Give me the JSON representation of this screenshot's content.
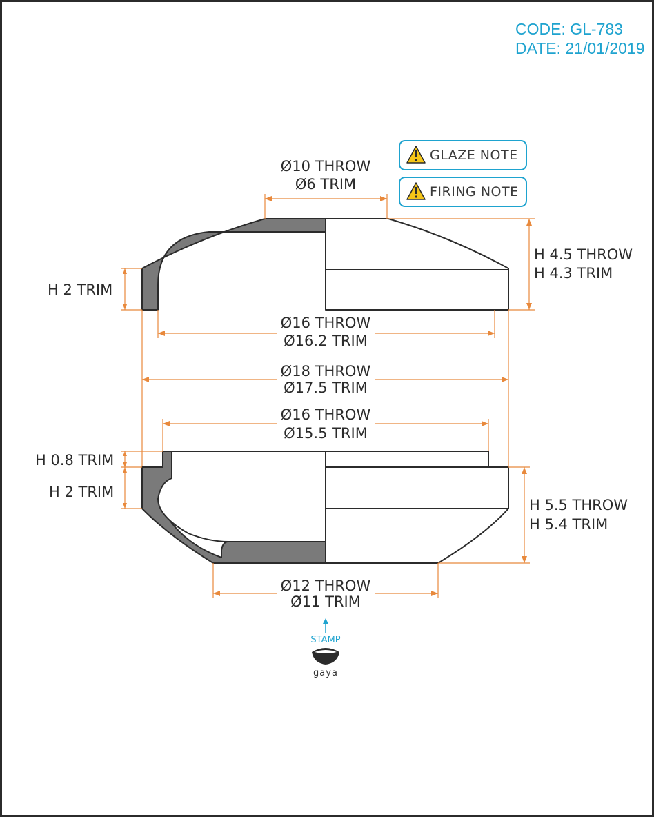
{
  "header": {
    "code": "CODE: GL-783",
    "date": "DATE: 21/01/2019"
  },
  "notes": [
    {
      "label": "GLAZE NOTE",
      "icon": "warning-icon"
    },
    {
      "label": "FIRING NOTE",
      "icon": "warning-icon"
    }
  ],
  "top_piece": {
    "top_diameter": {
      "throw": "Ø10 THROW",
      "trim": "Ø6 TRIM"
    },
    "height": {
      "throw": "H 4.5 THROW",
      "trim": "H 4.3 TRIM"
    },
    "wall_height": {
      "trim": "H 2 TRIM"
    },
    "inner_diameter": {
      "throw": "Ø16 THROW",
      "trim": "Ø16.2 TRIM"
    }
  },
  "shared": {
    "outer_diameter": {
      "throw": "Ø18 THROW",
      "trim": "Ø17.5 TRIM"
    }
  },
  "bottom_piece": {
    "flange_diameter": {
      "throw": "Ø16 THROW",
      "trim": "Ø15.5 TRIM"
    },
    "flange_height": {
      "trim": "H 0.8 TRIM"
    },
    "wall_height": {
      "trim": "H 2 TRIM"
    },
    "height": {
      "throw": "H 5.5 THROW",
      "trim": "H 5.4 TRIM"
    },
    "base_diameter": {
      "throw": "Ø12 THROW",
      "trim": "Ø11 TRIM"
    }
  },
  "stamp": {
    "label": "STAMP",
    "brand": "gaya"
  },
  "colors": {
    "dimension": "#e8893c",
    "accent": "#1ea3cf",
    "section_fill": "#7a7a7a",
    "warning": "#f5c518"
  }
}
